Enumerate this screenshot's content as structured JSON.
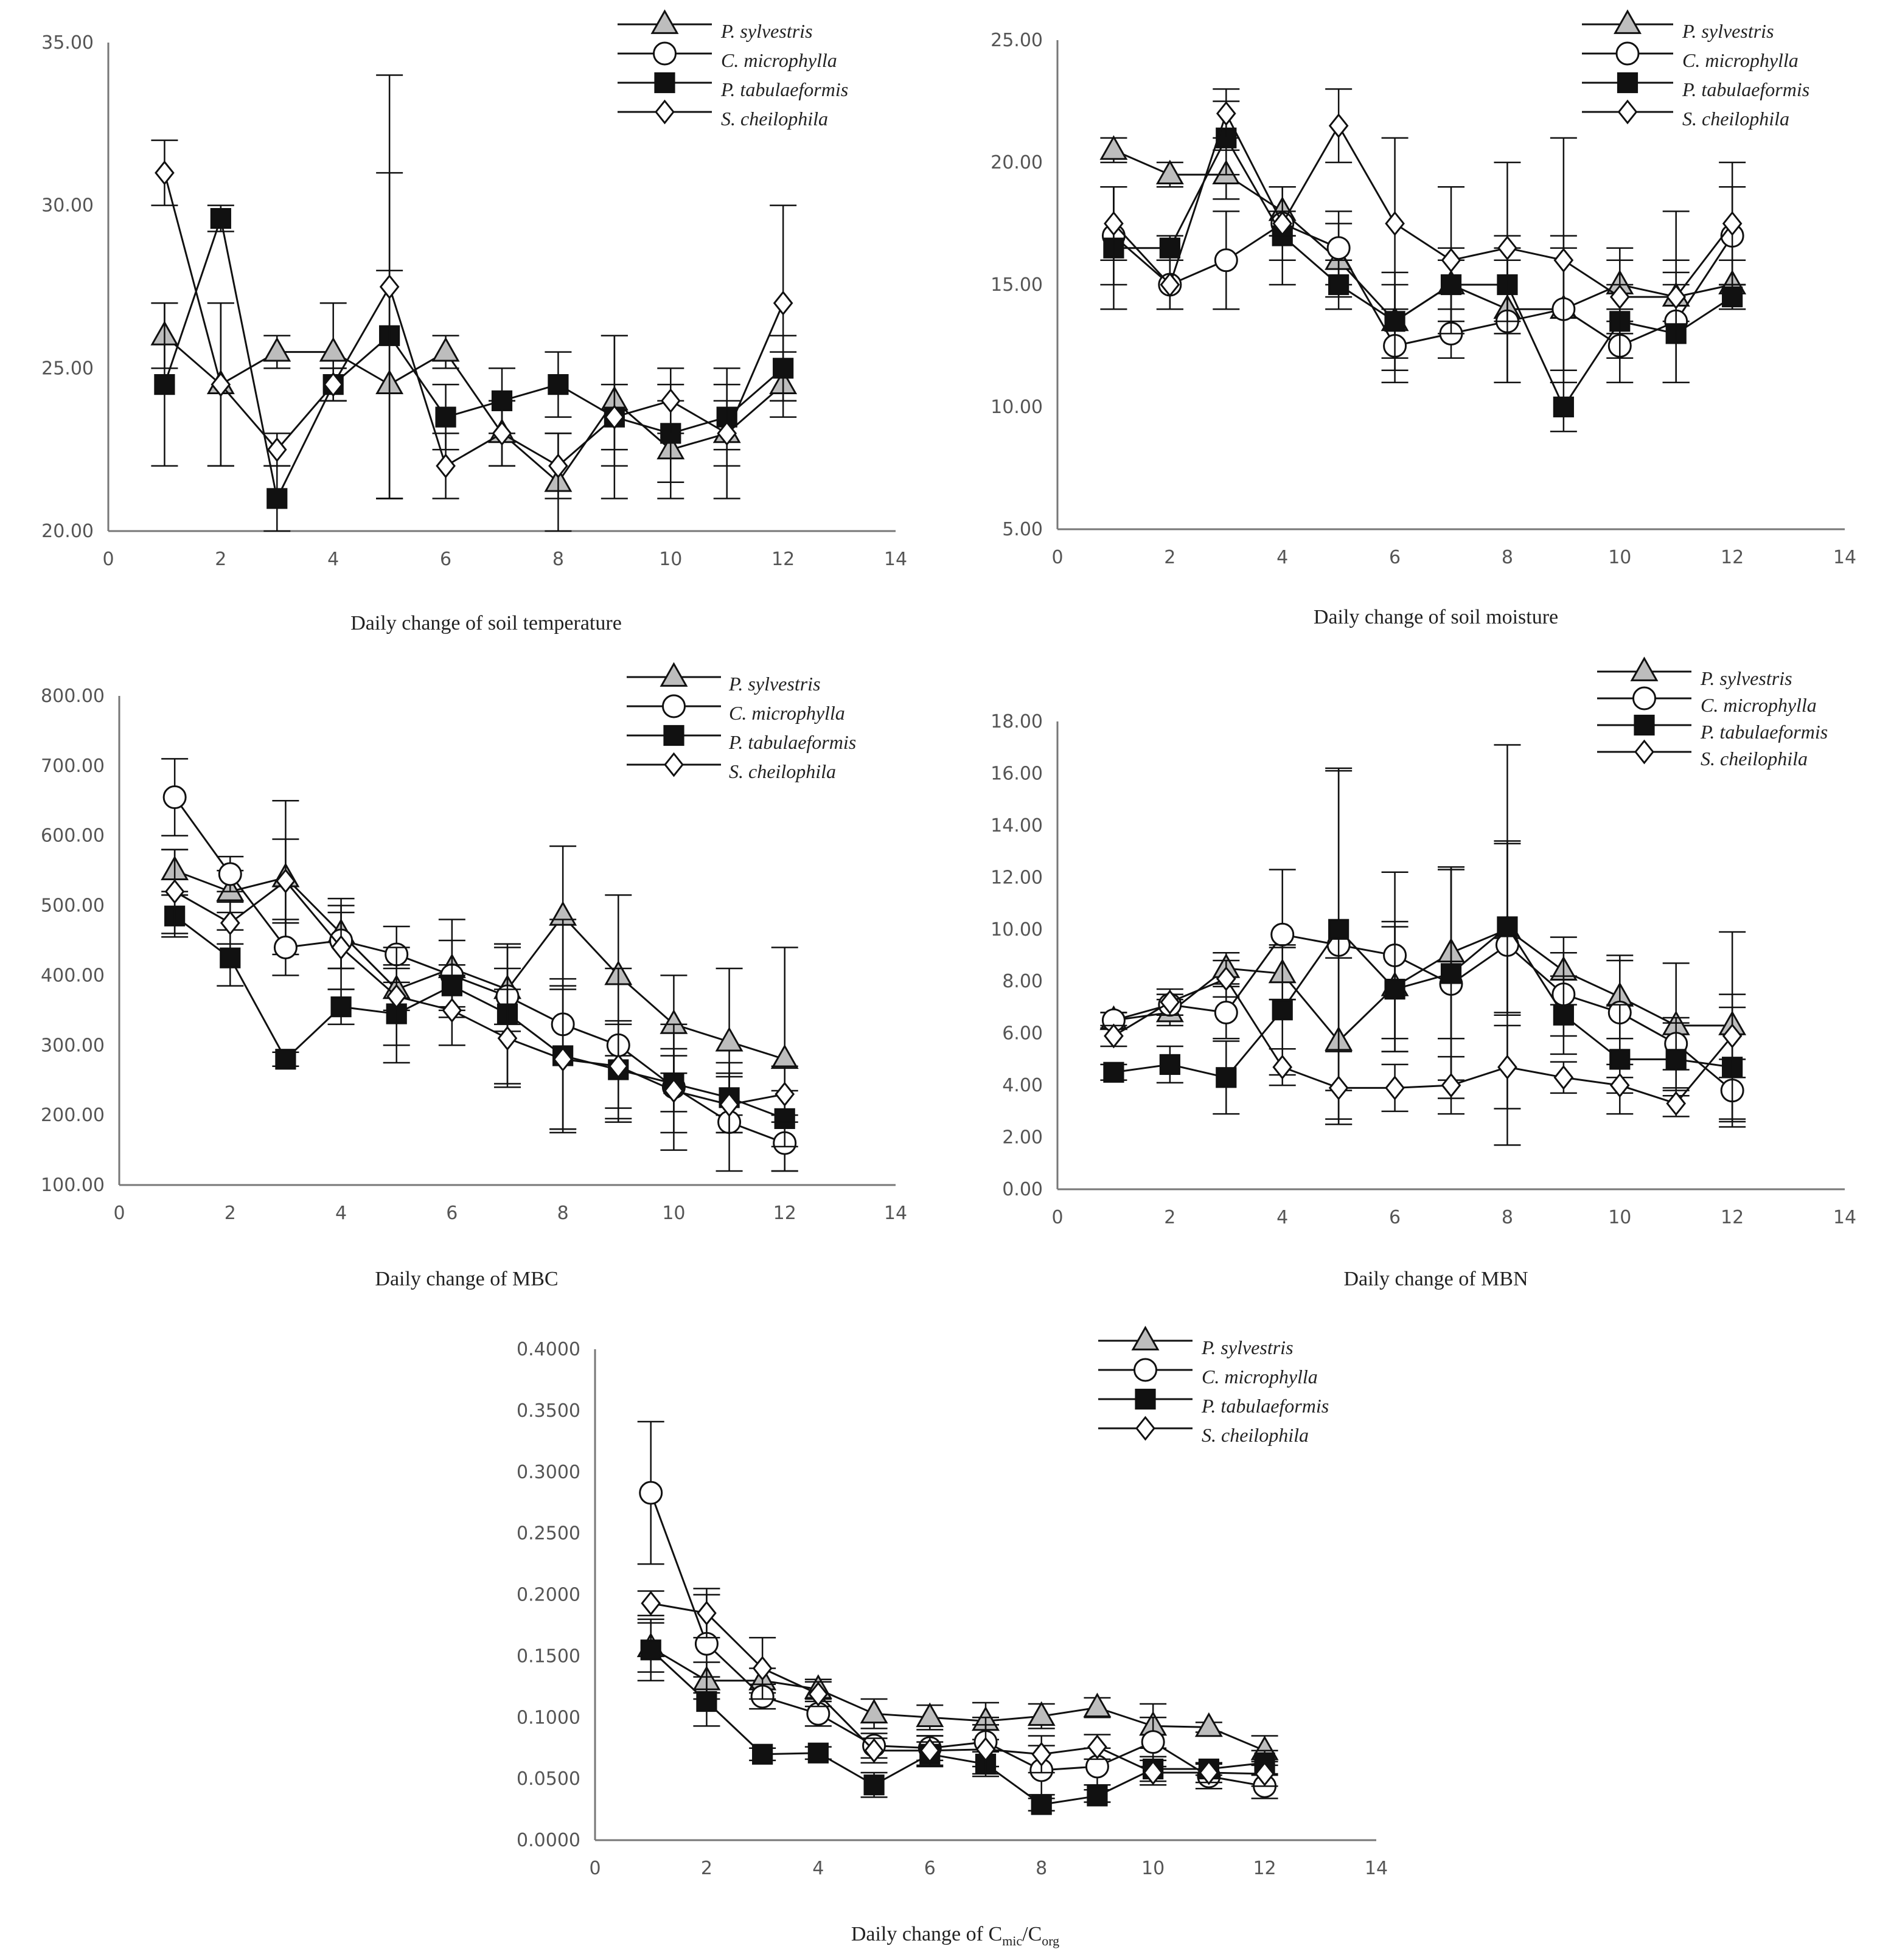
{
  "series_names": [
    "P. sylvestris",
    "C. microphylla",
    "P. tabulaeformis",
    "S. cheilophila"
  ],
  "chart_data": [
    {
      "type": "line",
      "title": "Daily change of soil temperature",
      "xlabel": "Daily change of soil temperature",
      "ylabel": "",
      "xlim": [
        0,
        14
      ],
      "xticks": [
        0,
        2,
        4,
        6,
        8,
        10,
        12,
        14
      ],
      "ylim": [
        20,
        35
      ],
      "yticks": [
        20,
        25,
        30,
        35
      ],
      "ydecimals": 2,
      "x": [
        1,
        2,
        3,
        4,
        5,
        6,
        7,
        8,
        9,
        10,
        11,
        12
      ],
      "series": [
        {
          "name": "P. sylvestris",
          "marker": "triangle",
          "values": [
            26,
            24.5,
            25.5,
            25.5,
            24.5,
            25.5,
            23,
            21.5,
            24,
            22.5,
            23,
            24.5
          ],
          "errors": [
            1,
            2.5,
            0.5,
            1.5,
            3.5,
            0.5,
            1,
            1.5,
            2,
            1.5,
            2,
            1
          ]
        },
        {
          "name": "C. microphylla",
          "marker": "circle",
          "values": [
            null,
            null,
            null,
            null,
            null,
            null,
            null,
            null,
            null,
            null,
            null,
            null
          ],
          "errors": null
        },
        {
          "name": "P. tabulaeformis",
          "marker": "square",
          "values": [
            24.5,
            29.6,
            21,
            24.5,
            26,
            23.5,
            24,
            24.5,
            23.5,
            23,
            23.5,
            25
          ],
          "errors": [
            2.5,
            0.4,
            1,
            0.5,
            5,
            1,
            1,
            1,
            1,
            1.5,
            1,
            1
          ]
        },
        {
          "name": "S. cheilophila",
          "marker": "diamond",
          "values": [
            31,
            24.5,
            22.5,
            24.5,
            27.5,
            22,
            23,
            22,
            23.5,
            24,
            23,
            27
          ],
          "errors": [
            1,
            2.5,
            0.5,
            0.5,
            6.5,
            1,
            1,
            1,
            2.5,
            1,
            1,
            3
          ]
        }
      ]
    },
    {
      "type": "line",
      "title": "Daily change of soil moisture",
      "xlabel": "Daily change of soil moisture",
      "ylabel": "",
      "xlim": [
        0,
        14
      ],
      "xticks": [
        0,
        2,
        4,
        6,
        8,
        10,
        12,
        14
      ],
      "ylim": [
        5,
        25
      ],
      "yticks": [
        5,
        10,
        15,
        20,
        25
      ],
      "ydecimals": 2,
      "x": [
        1,
        2,
        3,
        4,
        5,
        6,
        7,
        8,
        9,
        10,
        11,
        12
      ],
      "series": [
        {
          "name": "P. sylvestris",
          "marker": "triangle",
          "values": [
            20.5,
            19.5,
            19.5,
            18,
            16,
            13.5,
            15,
            14,
            14,
            15,
            14.5,
            15
          ],
          "errors": [
            0.5,
            0.5,
            1,
            1,
            1.5,
            2,
            1.5,
            3,
            3,
            1.5,
            1,
            1
          ]
        },
        {
          "name": "C. microphylla",
          "marker": "circle",
          "values": [
            17,
            15,
            16,
            17.5,
            16.5,
            12.5,
            13,
            13.5,
            14,
            12.5,
            13.5,
            17
          ],
          "errors": [
            2,
            1,
            2,
            1.5,
            1.5,
            1.5,
            1,
            2.5,
            2.5,
            1.5,
            2.5,
            2
          ]
        },
        {
          "name": "P. tabulaeformis",
          "marker": "square",
          "values": [
            16.5,
            16.5,
            21,
            17,
            15,
            13.5,
            15,
            15,
            10,
            13.5,
            13,
            14.5
          ],
          "errors": [
            2.5,
            0.5,
            1.5,
            2,
            1,
            1.5,
            1,
            1.5,
            1,
            1.5,
            2,
            0.5
          ]
        },
        {
          "name": "S. cheilophila",
          "marker": "diamond",
          "values": [
            17.5,
            15,
            22,
            17.5,
            21.5,
            17.5,
            16,
            16.5,
            16,
            14.5,
            14.5,
            17.5
          ],
          "errors": [
            1.5,
            1,
            1,
            0.5,
            1.5,
            3.5,
            3,
            3.5,
            5,
            1.5,
            3.5,
            2.5
          ]
        }
      ]
    },
    {
      "type": "line",
      "title": "Daily change of MBC",
      "xlabel": "Daily change of MBC",
      "ylabel": "",
      "xlim": [
        0,
        14
      ],
      "xticks": [
        0,
        2,
        4,
        6,
        8,
        10,
        12,
        14
      ],
      "ylim": [
        100,
        800
      ],
      "yticks": [
        100,
        200,
        300,
        400,
        500,
        600,
        700,
        800
      ],
      "ydecimals": 2,
      "x": [
        1,
        2,
        3,
        4,
        5,
        6,
        7,
        8,
        9,
        10,
        11,
        12
      ],
      "series": [
        {
          "name": "P. sylvestris",
          "marker": "triangle",
          "values": [
            550,
            520,
            540,
            460,
            380,
            410,
            380,
            485,
            400,
            330,
            305,
            280
          ],
          "errors": [
            30,
            30,
            110,
            50,
            30,
            70,
            60,
            100,
            115,
            70,
            105,
            160
          ]
        },
        {
          "name": "C. microphylla",
          "marker": "circle",
          "values": [
            655,
            545,
            440,
            450,
            430,
            400,
            370,
            330,
            300,
            240,
            190,
            160
          ],
          "errors": [
            55,
            25,
            40,
            40,
            40,
            50,
            40,
            150,
            110,
            90,
            70,
            40
          ]
        },
        {
          "name": "P. tabulaeformis",
          "marker": "square",
          "values": [
            485,
            425,
            280,
            355,
            345,
            385,
            345,
            285,
            265,
            245,
            225,
            195
          ],
          "errors": [
            30,
            40,
            10,
            25,
            70,
            30,
            100,
            110,
            70,
            40,
            50,
            40
          ]
        },
        {
          "name": "S. cheilophila",
          "marker": "diamond",
          "values": [
            520,
            475,
            535,
            440,
            370,
            350,
            310,
            280,
            270,
            235,
            215,
            230
          ],
          "errors": [
            60,
            30,
            60,
            60,
            70,
            50,
            70,
            100,
            60,
            60,
            40,
            40
          ]
        }
      ]
    },
    {
      "type": "line",
      "title": "Daily change of MBN",
      "xlabel": "Daily change of MBN",
      "ylabel": "",
      "xlim": [
        0,
        14
      ],
      "xticks": [
        0,
        2,
        4,
        6,
        8,
        10,
        12,
        14
      ],
      "ylim": [
        0,
        18
      ],
      "yticks": [
        0,
        2,
        4,
        6,
        8,
        10,
        12,
        14,
        16,
        18
      ],
      "ydecimals": 2,
      "x": [
        1,
        2,
        3,
        4,
        5,
        6,
        7,
        8,
        9,
        10,
        11,
        12
      ],
      "series": [
        {
          "name": "P. sylvestris",
          "marker": "triangle",
          "values": [
            6.5,
            6.8,
            8.5,
            8.3,
            5.7,
            7.8,
            9.1,
            10.0,
            8.4,
            7.4,
            6.3,
            6.3
          ],
          "errors": [
            0.3,
            0.5,
            0.6,
            1.0,
            3.2,
            2.5,
            3.3,
            3.3,
            1.3,
            1.6,
            2.4,
            3.6
          ]
        },
        {
          "name": "C. microphylla",
          "marker": "circle",
          "values": [
            6.5,
            7.1,
            6.8,
            9.8,
            9.4,
            9.0,
            7.9,
            9.4,
            7.5,
            6.8,
            5.6,
            3.8
          ],
          "errors": [
            0.3,
            0.4,
            1.0,
            2.5,
            6.7,
            3.2,
            4.4,
            7.7,
            1.6,
            2.0,
            1.0,
            1.2
          ]
        },
        {
          "name": "P. tabulaeformis",
          "marker": "square",
          "values": [
            4.5,
            4.8,
            4.3,
            6.9,
            10.0,
            7.7,
            8.3,
            10.1,
            6.7,
            5.0,
            5.0,
            4.7
          ],
          "errors": [
            0.3,
            0.7,
            1.4,
            2.5,
            6.2,
            2.4,
            4.1,
            3.3,
            1.5,
            2.1,
            1.4,
            2.3
          ]
        },
        {
          "name": "S. cheilophila",
          "marker": "diamond",
          "values": [
            5.9,
            7.2,
            8.1,
            4.7,
            3.9,
            3.9,
            4.0,
            4.7,
            4.3,
            4.0,
            3.3,
            5.9
          ],
          "errors": [
            0.4,
            0.5,
            0.7,
            0.7,
            1.4,
            0.9,
            1.1,
            1.6,
            0.6,
            0.3,
            0.5,
            1.6
          ]
        }
      ]
    },
    {
      "type": "line",
      "title": "Daily change of Cmic/Corg",
      "xlabel_main": "Daily change of C",
      "xlabel_sub1": "mic",
      "xlabel_mid": "/C",
      "xlabel_sub2": "org",
      "ylabel": "",
      "xlim": [
        0,
        14
      ],
      "xticks": [
        0,
        2,
        4,
        6,
        8,
        10,
        12,
        14
      ],
      "ylim": [
        0,
        0.4
      ],
      "yticks": [
        0,
        0.05,
        0.1,
        0.15,
        0.2,
        0.25,
        0.3,
        0.35,
        0.4
      ],
      "ydecimals": 4,
      "x": [
        1,
        2,
        3,
        4,
        5,
        6,
        7,
        8,
        9,
        10,
        11,
        12
      ],
      "series": [
        {
          "name": "P. sylvestris",
          "marker": "triangle",
          "values": [
            0.157,
            0.13,
            0.13,
            0.123,
            0.103,
            0.1,
            0.097,
            0.101,
            0.108,
            0.093,
            0.092,
            0.073
          ],
          "errors": [
            0.02,
            0.015,
            0.01,
            0.008,
            0.012,
            0.01,
            0.015,
            0.01,
            0.008,
            0.018,
            0.004,
            0.012
          ]
        },
        {
          "name": "C. microphylla",
          "marker": "circle",
          "values": [
            0.283,
            0.16,
            0.117,
            0.103,
            0.077,
            0.075,
            0.08,
            0.057,
            0.06,
            0.08,
            0.052,
            0.044
          ],
          "errors": [
            0.058,
            0.04,
            0.01,
            0.01,
            0.01,
            0.01,
            0.02,
            0.02,
            0.015,
            0.02,
            0.01,
            0.01
          ]
        },
        {
          "name": "P. tabulaeformis",
          "marker": "square",
          "values": [
            0.155,
            0.113,
            0.07,
            0.071,
            0.045,
            0.07,
            0.062,
            0.029,
            0.036,
            0.058,
            0.058,
            0.063
          ],
          "errors": [
            0.025,
            0.02,
            0.005,
            0.005,
            0.01,
            0.01,
            0.01,
            0.005,
            0.005,
            0.01,
            0.005,
            0.01
          ]
        },
        {
          "name": "S. cheilophila",
          "marker": "diamond",
          "values": [
            0.193,
            0.185,
            0.14,
            0.119,
            0.073,
            0.073,
            0.074,
            0.07,
            0.076,
            0.055,
            0.055,
            0.054
          ],
          "errors": [
            0.01,
            0.02,
            0.025,
            0.01,
            0.01,
            0.012,
            0.02,
            0.015,
            0.01,
            0.01,
            0.008,
            0.01
          ]
        }
      ]
    }
  ]
}
